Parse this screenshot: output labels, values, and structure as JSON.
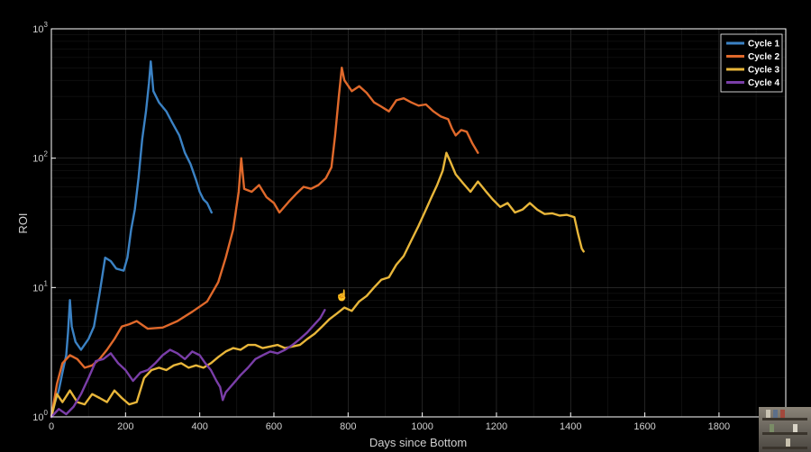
{
  "colors": {
    "background": "#000000",
    "axis": "#ffffff",
    "grid": "#3a3a3a",
    "cycle1": "#3b82c4",
    "cycle2": "#e0692b",
    "cycle3": "#e8b63a",
    "cycle4": "#7a3ea8"
  },
  "chart_data": {
    "type": "line",
    "xlabel": "Days since Bottom",
    "ylabel": "ROI",
    "xlim": [
      0,
      1980
    ],
    "ylim": [
      1,
      1000
    ],
    "yscale": "log",
    "grid": true,
    "legend_position": "top-right",
    "x_ticks": [
      "0",
      "200",
      "400",
      "600",
      "800",
      "1000",
      "1200",
      "1400",
      "1600",
      "1800"
    ],
    "y_ticks": [
      {
        "base": "10",
        "exp": "0",
        "value": 1
      },
      {
        "base": "10",
        "exp": "1",
        "value": 10
      },
      {
        "base": "10",
        "exp": "2",
        "value": 100
      },
      {
        "base": "10",
        "exp": "3",
        "value": 1000
      }
    ],
    "series": [
      {
        "name": "Cycle 1",
        "color_key": "cycle1",
        "points": [
          [
            0,
            1.0
          ],
          [
            10,
            1.3
          ],
          [
            20,
            1.6
          ],
          [
            30,
            2.2
          ],
          [
            40,
            3.0
          ],
          [
            45,
            4.5
          ],
          [
            50,
            8.0
          ],
          [
            55,
            5.0
          ],
          [
            65,
            3.8
          ],
          [
            80,
            3.3
          ],
          [
            100,
            4.0
          ],
          [
            115,
            5.0
          ],
          [
            130,
            9.0
          ],
          [
            145,
            17.0
          ],
          [
            160,
            16.0
          ],
          [
            175,
            14.0
          ],
          [
            195,
            13.5
          ],
          [
            205,
            17.0
          ],
          [
            215,
            28.0
          ],
          [
            225,
            40.0
          ],
          [
            235,
            70.0
          ],
          [
            245,
            140.0
          ],
          [
            255,
            230.0
          ],
          [
            263,
            380.0
          ],
          [
            268,
            560.0
          ],
          [
            275,
            330.0
          ],
          [
            290,
            270.0
          ],
          [
            310,
            230.0
          ],
          [
            325,
            190.0
          ],
          [
            345,
            150.0
          ],
          [
            360,
            110.0
          ],
          [
            375,
            90.0
          ],
          [
            390,
            68.0
          ],
          [
            400,
            55.0
          ],
          [
            410,
            48.0
          ],
          [
            420,
            45.0
          ],
          [
            432,
            38.0
          ]
        ]
      },
      {
        "name": "Cycle 2",
        "color_key": "cycle2",
        "points": [
          [
            0,
            1.0
          ],
          [
            15,
            1.8
          ],
          [
            30,
            2.6
          ],
          [
            50,
            3.0
          ],
          [
            70,
            2.8
          ],
          [
            90,
            2.4
          ],
          [
            110,
            2.5
          ],
          [
            130,
            2.8
          ],
          [
            150,
            3.3
          ],
          [
            170,
            4.0
          ],
          [
            190,
            5.0
          ],
          [
            210,
            5.2
          ],
          [
            230,
            5.5
          ],
          [
            260,
            4.8
          ],
          [
            300,
            4.9
          ],
          [
            340,
            5.5
          ],
          [
            380,
            6.5
          ],
          [
            420,
            7.8
          ],
          [
            450,
            11.0
          ],
          [
            470,
            17.0
          ],
          [
            490,
            28.0
          ],
          [
            505,
            55.0
          ],
          [
            512,
            100.0
          ],
          [
            520,
            58.0
          ],
          [
            540,
            55.0
          ],
          [
            560,
            62.0
          ],
          [
            580,
            50.0
          ],
          [
            600,
            45.0
          ],
          [
            615,
            38.0
          ],
          [
            640,
            46.0
          ],
          [
            660,
            53.0
          ],
          [
            680,
            60.0
          ],
          [
            700,
            58.0
          ],
          [
            720,
            62.0
          ],
          [
            740,
            70.0
          ],
          [
            755,
            85.0
          ],
          [
            765,
            150.0
          ],
          [
            775,
            300.0
          ],
          [
            783,
            500.0
          ],
          [
            790,
            400.0
          ],
          [
            810,
            330.0
          ],
          [
            830,
            360.0
          ],
          [
            850,
            320.0
          ],
          [
            870,
            270.0
          ],
          [
            890,
            250.0
          ],
          [
            910,
            230.0
          ],
          [
            930,
            280.0
          ],
          [
            950,
            290.0
          ],
          [
            970,
            270.0
          ],
          [
            990,
            255.0
          ],
          [
            1010,
            260.0
          ],
          [
            1030,
            230.0
          ],
          [
            1050,
            210.0
          ],
          [
            1070,
            200.0
          ],
          [
            1080,
            170.0
          ],
          [
            1090,
            150.0
          ],
          [
            1105,
            165.0
          ],
          [
            1120,
            160.0
          ],
          [
            1135,
            130.0
          ],
          [
            1150,
            110.0
          ]
        ]
      },
      {
        "name": "Cycle 3",
        "color_key": "cycle3",
        "points": [
          [
            0,
            1.0
          ],
          [
            15,
            1.5
          ],
          [
            30,
            1.3
          ],
          [
            50,
            1.6
          ],
          [
            70,
            1.3
          ],
          [
            90,
            1.25
          ],
          [
            110,
            1.5
          ],
          [
            130,
            1.4
          ],
          [
            150,
            1.3
          ],
          [
            170,
            1.6
          ],
          [
            190,
            1.4
          ],
          [
            210,
            1.25
          ],
          [
            230,
            1.3
          ],
          [
            250,
            2.0
          ],
          [
            270,
            2.3
          ],
          [
            290,
            2.4
          ],
          [
            310,
            2.3
          ],
          [
            330,
            2.5
          ],
          [
            350,
            2.6
          ],
          [
            370,
            2.4
          ],
          [
            390,
            2.5
          ],
          [
            410,
            2.4
          ],
          [
            430,
            2.6
          ],
          [
            450,
            2.9
          ],
          [
            470,
            3.2
          ],
          [
            490,
            3.4
          ],
          [
            510,
            3.3
          ],
          [
            530,
            3.6
          ],
          [
            550,
            3.6
          ],
          [
            570,
            3.4
          ],
          [
            590,
            3.5
          ],
          [
            610,
            3.6
          ],
          [
            630,
            3.4
          ],
          [
            650,
            3.5
          ],
          [
            670,
            3.6
          ],
          [
            690,
            4.0
          ],
          [
            710,
            4.4
          ],
          [
            730,
            5.0
          ],
          [
            750,
            5.7
          ],
          [
            770,
            6.3
          ],
          [
            790,
            7.0
          ],
          [
            810,
            6.6
          ],
          [
            830,
            7.8
          ],
          [
            850,
            8.6
          ],
          [
            870,
            10.0
          ],
          [
            890,
            11.5
          ],
          [
            910,
            12.0
          ],
          [
            930,
            15.0
          ],
          [
            950,
            17.5
          ],
          [
            970,
            23.0
          ],
          [
            990,
            30.0
          ],
          [
            1010,
            40.0
          ],
          [
            1025,
            50.0
          ],
          [
            1040,
            62.0
          ],
          [
            1055,
            80.0
          ],
          [
            1065,
            110.0
          ],
          [
            1075,
            95.0
          ],
          [
            1090,
            75.0
          ],
          [
            1110,
            64.0
          ],
          [
            1130,
            55.0
          ],
          [
            1150,
            66.0
          ],
          [
            1170,
            56.0
          ],
          [
            1190,
            48.0
          ],
          [
            1210,
            42.0
          ],
          [
            1230,
            45.0
          ],
          [
            1250,
            38.0
          ],
          [
            1270,
            40.0
          ],
          [
            1290,
            45.0
          ],
          [
            1310,
            40.0
          ],
          [
            1330,
            37.0
          ],
          [
            1350,
            37.5
          ],
          [
            1370,
            36.0
          ],
          [
            1390,
            36.5
          ],
          [
            1410,
            35.0
          ],
          [
            1420,
            26.0
          ],
          [
            1430,
            20.0
          ],
          [
            1435,
            19.0
          ]
        ]
      },
      {
        "name": "Cycle 4",
        "color_key": "cycle4",
        "points": [
          [
            0,
            1.0
          ],
          [
            20,
            1.15
          ],
          [
            40,
            1.05
          ],
          [
            60,
            1.2
          ],
          [
            80,
            1.5
          ],
          [
            100,
            2.0
          ],
          [
            120,
            2.7
          ],
          [
            140,
            2.8
          ],
          [
            160,
            3.1
          ],
          [
            180,
            2.6
          ],
          [
            200,
            2.3
          ],
          [
            220,
            1.9
          ],
          [
            240,
            2.2
          ],
          [
            260,
            2.3
          ],
          [
            280,
            2.6
          ],
          [
            300,
            3.0
          ],
          [
            320,
            3.3
          ],
          [
            340,
            3.1
          ],
          [
            360,
            2.8
          ],
          [
            380,
            3.2
          ],
          [
            400,
            3.0
          ],
          [
            415,
            2.6
          ],
          [
            430,
            2.3
          ],
          [
            445,
            1.9
          ],
          [
            455,
            1.7
          ],
          [
            462,
            1.35
          ],
          [
            470,
            1.55
          ],
          [
            490,
            1.8
          ],
          [
            510,
            2.1
          ],
          [
            530,
            2.4
          ],
          [
            550,
            2.8
          ],
          [
            570,
            3.0
          ],
          [
            590,
            3.2
          ],
          [
            610,
            3.1
          ],
          [
            630,
            3.3
          ],
          [
            650,
            3.6
          ],
          [
            670,
            4.0
          ],
          [
            690,
            4.5
          ],
          [
            710,
            5.2
          ],
          [
            725,
            5.8
          ],
          [
            737,
            6.7
          ]
        ]
      }
    ]
  }
}
